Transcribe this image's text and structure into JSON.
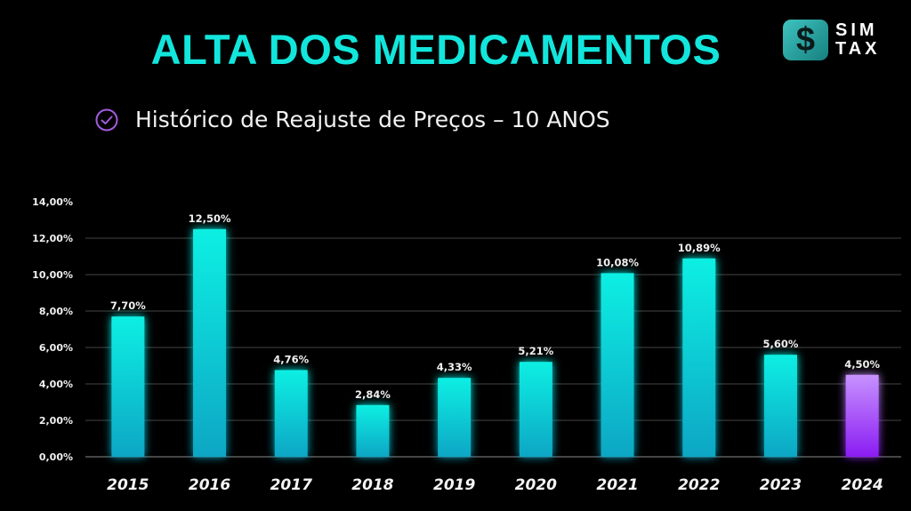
{
  "header": {
    "title": "ALTA DOS MEDICAMENTOS",
    "subtitle": "Histórico de Reajuste de Preços – 10 ANOS",
    "subtitle_icon": "check-circle-icon"
  },
  "logo": {
    "symbol": "$",
    "line1": "SIM",
    "line2": "TAX"
  },
  "colors": {
    "title": "#12e6dc",
    "bar_top": "#11efe3",
    "bar_bottom": "#0aa6c4",
    "highlight_top": "#c792ff",
    "highlight_bottom": "#8a1cf2",
    "check_icon": "#a35be0"
  },
  "chart_data": {
    "type": "bar",
    "title": "ALTA DOS MEDICAMENTOS",
    "subtitle": "Histórico de Reajuste de Preços – 10 ANOS",
    "xlabel": "",
    "ylabel": "",
    "categories": [
      "2015",
      "2016",
      "2017",
      "2018",
      "2019",
      "2020",
      "2021",
      "2022",
      "2023",
      "2024"
    ],
    "values": [
      7.7,
      12.5,
      4.76,
      2.84,
      4.33,
      5.21,
      10.08,
      10.89,
      5.6,
      4.5
    ],
    "value_labels": [
      "7,70%",
      "12,50%",
      "4,76%",
      "2,84%",
      "4,33%",
      "5,21%",
      "10,08%",
      "10,89%",
      "5,60%",
      "4,50%"
    ],
    "highlight_index": 9,
    "ylim": [
      0,
      14
    ],
    "yticks": [
      0,
      2,
      4,
      6,
      8,
      10,
      12,
      14
    ],
    "ytick_labels": [
      "0,00%",
      "2,00%",
      "4,00%",
      "6,00%",
      "8,00%",
      "10,00%",
      "12,00%",
      "14,00%"
    ],
    "gridlines": [
      0,
      2,
      4,
      6,
      8,
      10,
      12
    ],
    "grid": true,
    "legend": "none"
  }
}
